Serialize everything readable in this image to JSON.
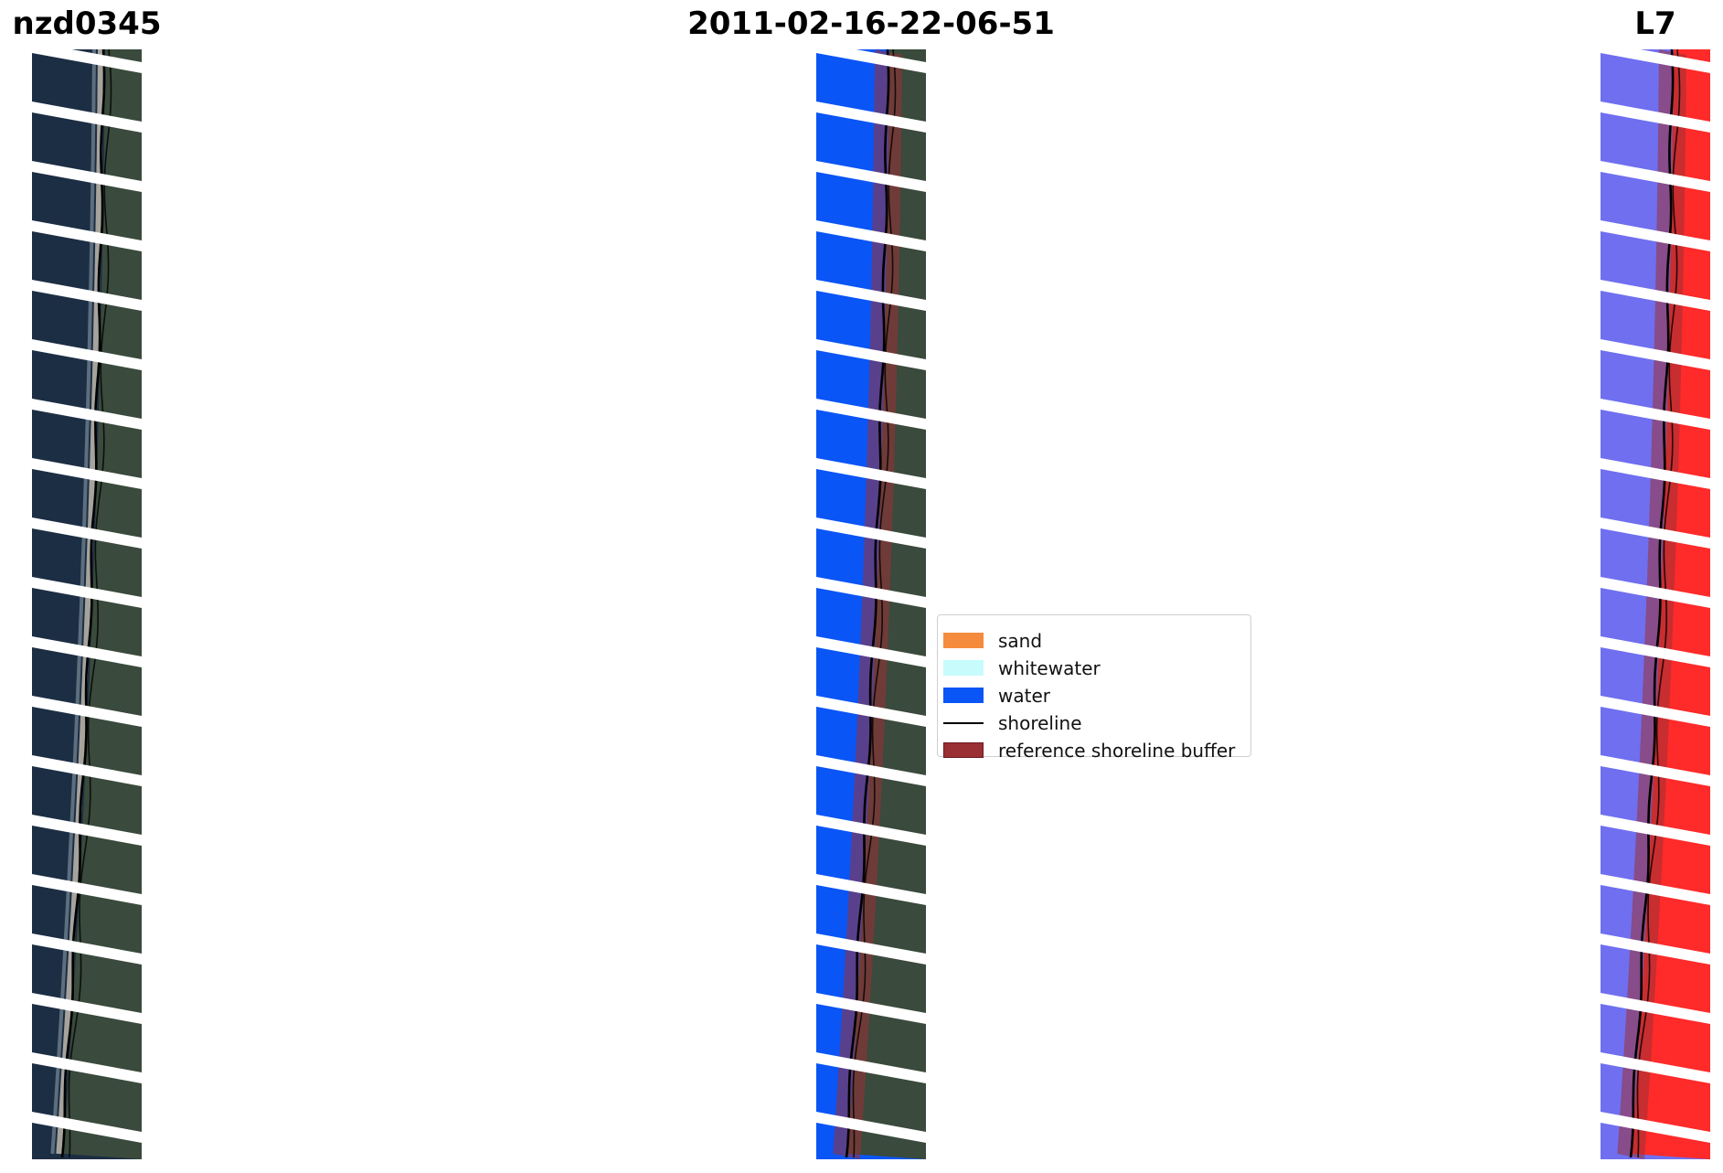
{
  "titles": {
    "left": "nzd0345",
    "center": "2011-02-16-22-06-51",
    "right": "L7"
  },
  "legend": {
    "items": [
      {
        "label": "sand",
        "color": "#f58b3c",
        "kind": "patch"
      },
      {
        "label": "whitewater",
        "color": "#c8fbfb",
        "kind": "patch"
      },
      {
        "label": "water",
        "color": "#0a55f5",
        "kind": "patch"
      },
      {
        "label": "shoreline",
        "color": "#000000",
        "kind": "line"
      },
      {
        "label": "reference shoreline buffer",
        "color": "#9a2f34",
        "kind": "patch"
      }
    ]
  },
  "colors": {
    "rgb_water": "#1c2e44",
    "rgb_land": "#3a4a3c",
    "classified_water": "#0a55f5",
    "buffer": "#9a2f34",
    "index_water": "#6f6ff0",
    "index_land": "#ff2a2a",
    "scanline_gap": "#ffffff"
  }
}
